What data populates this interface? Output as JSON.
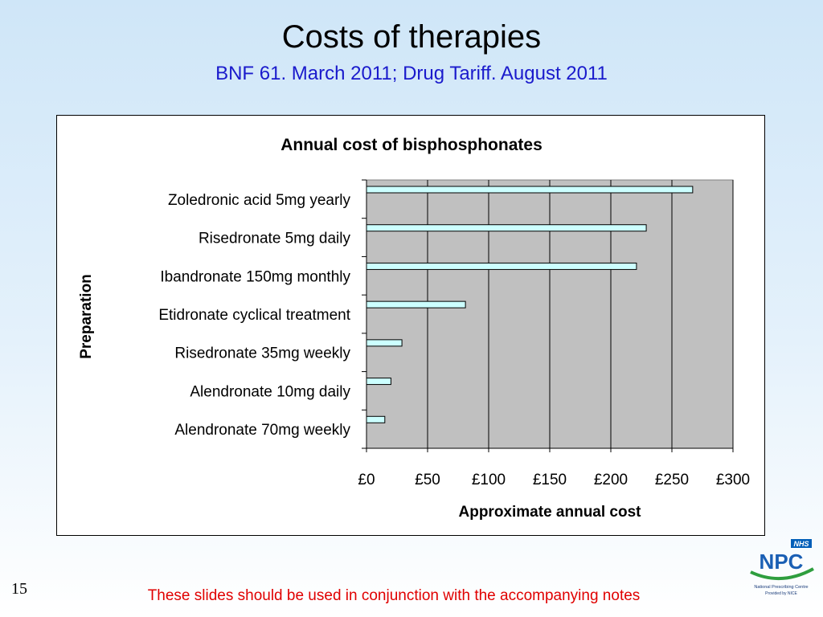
{
  "slide": {
    "title": "Costs of therapies",
    "subtitle": "BNF 61. March 2011; Drug Tariff. August 2011",
    "number": "15",
    "footer": "These slides should be used in conjunction with the accompanying notes"
  },
  "logo": {
    "badge": "NHS",
    "name": "NPC",
    "line1": "National Prescribing Centre",
    "line2": "Provided by NICE"
  },
  "colors": {
    "plot_area": "#c0c0c0",
    "bar_fill": "#ccffff",
    "subtitle": "#1a1acc",
    "footer": "#e00000"
  },
  "chart_data": {
    "type": "bar",
    "orientation": "horizontal",
    "title": "Annual cost of bisphosphonates",
    "xlabel": "Approximate annual cost",
    "ylabel": "Preparation",
    "categories": [
      "Zoledronic acid 5mg yearly",
      "Risedronate 5mg daily",
      "Ibandronate 150mg monthly",
      "Etidronate cyclical treatment",
      "Risedronate 35mg weekly",
      "Alendronate 10mg daily",
      "Alendronate 70mg weekly"
    ],
    "values": [
      267,
      229,
      221,
      81,
      29,
      20,
      15
    ],
    "xlim": [
      0,
      300
    ],
    "xticks": [
      0,
      50,
      100,
      150,
      200,
      250,
      300
    ],
    "xtick_labels": [
      "£0",
      "£50",
      "£100",
      "£150",
      "£200",
      "£250",
      "£300"
    ],
    "grid": "vertical",
    "legend": "none"
  }
}
